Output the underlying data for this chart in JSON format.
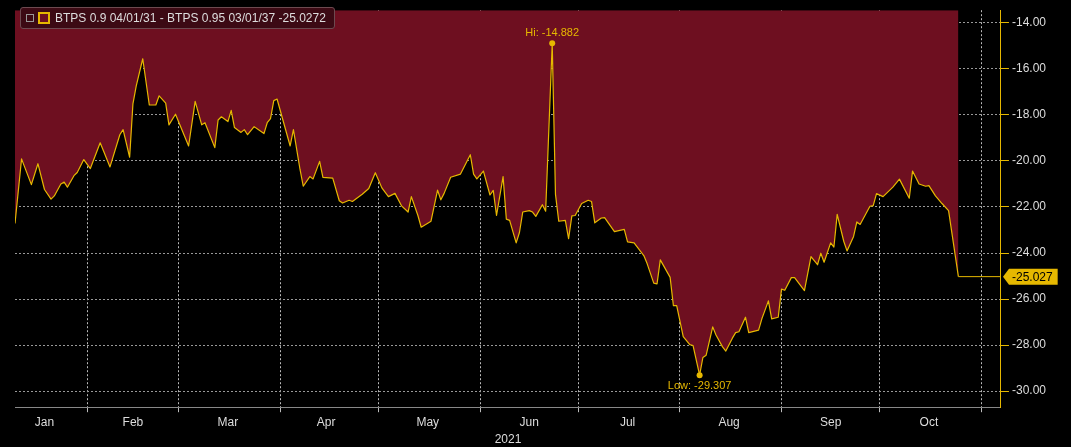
{
  "chart_data": {
    "type": "area",
    "xlabel": "2021",
    "legend": "top left",
    "grid": true,
    "marker": "none",
    "xlim": [
      "2021-01-10",
      "2021-11-07"
    ],
    "xticks": [
      {
        "value": "2021-01-19",
        "label": "Jan"
      },
      {
        "value": "2021-02-01",
        "label": null
      },
      {
        "value": "2021-02-15",
        "label": "Feb"
      },
      {
        "value": "2021-03-01",
        "label": null
      },
      {
        "value": "2021-03-16",
        "label": "Mar"
      },
      {
        "value": "2021-04-01",
        "label": null
      },
      {
        "value": "2021-04-15",
        "label": "Apr"
      },
      {
        "value": "2021-05-01",
        "label": null
      },
      {
        "value": "2021-05-16",
        "label": "May"
      },
      {
        "value": "2021-06-01",
        "label": null
      },
      {
        "value": "2021-06-16",
        "label": "Jun"
      },
      {
        "value": "2021-07-01",
        "label": null
      },
      {
        "value": "2021-07-16",
        "label": "Jul"
      },
      {
        "value": "2021-08-01",
        "label": null
      },
      {
        "value": "2021-08-16",
        "label": "Aug"
      },
      {
        "value": "2021-09-01",
        "label": null
      },
      {
        "value": "2021-09-16",
        "label": "Sep"
      },
      {
        "value": "2021-10-01",
        "label": null
      },
      {
        "value": "2021-10-16",
        "label": "Oct"
      },
      {
        "value": "2021-11-01",
        "label": null
      }
    ],
    "ylim": [
      -30.7,
      -13.45
    ],
    "yticks": [
      {
        "value": -14,
        "label": "-14.00"
      },
      {
        "value": -16,
        "label": "-16.00"
      },
      {
        "value": -18,
        "label": "-18.00"
      },
      {
        "value": -20,
        "label": "-20.00"
      },
      {
        "value": -22,
        "label": "-22.00"
      },
      {
        "value": -24,
        "label": "-24.00"
      },
      {
        "value": -26,
        "label": "-26.00"
      },
      {
        "value": -28,
        "label": "-28.00"
      },
      {
        "value": -30,
        "label": "-30.00"
      }
    ],
    "x": [
      "2021-01-10",
      "2021-01-12",
      "2021-01-15",
      "2021-01-17",
      "2021-01-19",
      "2021-01-21",
      "2021-01-22",
      "2021-01-24",
      "2021-01-25",
      "2021-01-26",
      "2021-01-28",
      "2021-01-29",
      "2021-01-31",
      "2021-02-02",
      "2021-02-05",
      "2021-02-06",
      "2021-02-08",
      "2021-02-11",
      "2021-02-12",
      "2021-02-14",
      "2021-02-15",
      "2021-02-16",
      "2021-02-18",
      "2021-02-20",
      "2021-02-22",
      "2021-02-23",
      "2021-02-25",
      "2021-02-26",
      "2021-02-28",
      "2021-03-04",
      "2021-03-06",
      "2021-03-08",
      "2021-03-09",
      "2021-03-12",
      "2021-03-13",
      "2021-03-14",
      "2021-03-16",
      "2021-03-17",
      "2021-03-18",
      "2021-03-20",
      "2021-03-21",
      "2021-03-22",
      "2021-03-24",
      "2021-03-27",
      "2021-03-28",
      "2021-03-29",
      "2021-03-30",
      "2021-03-31",
      "2021-04-04",
      "2021-04-05",
      "2021-04-07",
      "2021-04-08",
      "2021-04-10",
      "2021-04-11",
      "2021-04-13",
      "2021-04-14",
      "2021-04-17",
      "2021-04-19",
      "2021-04-20",
      "2021-04-22",
      "2021-04-23",
      "2021-04-26",
      "2021-04-28",
      "2021-04-30",
      "2021-05-02",
      "2021-05-04",
      "2021-05-06",
      "2021-05-08",
      "2021-05-10",
      "2021-05-11",
      "2021-05-13",
      "2021-05-14",
      "2021-05-17",
      "2021-05-19",
      "2021-05-20",
      "2021-05-21",
      "2021-05-23",
      "2021-05-26",
      "2021-05-29",
      "2021-05-30",
      "2021-05-31",
      "2021-06-02",
      "2021-06-04",
      "2021-06-05",
      "2021-06-06",
      "2021-06-08",
      "2021-06-09",
      "2021-06-10",
      "2021-06-12",
      "2021-06-13",
      "2021-06-14",
      "2021-06-16",
      "2021-06-17",
      "2021-06-18",
      "2021-06-20",
      "2021-06-21",
      "2021-06-23",
      "2021-06-24",
      "2021-06-25",
      "2021-06-27",
      "2021-06-28",
      "2021-06-29",
      "2021-06-30",
      "2021-07-02",
      "2021-07-04",
      "2021-07-05",
      "2021-07-06",
      "2021-07-08",
      "2021-07-09",
      "2021-07-12",
      "2021-07-15",
      "2021-07-16",
      "2021-07-18",
      "2021-07-21",
      "2021-07-22",
      "2021-07-24",
      "2021-07-25",
      "2021-07-26",
      "2021-07-29",
      "2021-07-30",
      "2021-07-31",
      "2021-08-02",
      "2021-08-04",
      "2021-08-05",
      "2021-08-07",
      "2021-08-08",
      "2021-08-09",
      "2021-08-11",
      "2021-08-12",
      "2021-08-14",
      "2021-08-15",
      "2021-08-17",
      "2021-08-18",
      "2021-08-19",
      "2021-08-21",
      "2021-08-22",
      "2021-08-25",
      "2021-08-26",
      "2021-08-28",
      "2021-08-29",
      "2021-08-31",
      "2021-09-01",
      "2021-09-02",
      "2021-09-04",
      "2021-09-05",
      "2021-09-08",
      "2021-09-10",
      "2021-09-12",
      "2021-09-13",
      "2021-09-14",
      "2021-09-16",
      "2021-09-17",
      "2021-09-18",
      "2021-09-20",
      "2021-09-21",
      "2021-09-23",
      "2021-09-24",
      "2021-09-25",
      "2021-09-28",
      "2021-09-29",
      "2021-09-30",
      "2021-10-02",
      "2021-10-05",
      "2021-10-07",
      "2021-10-10",
      "2021-10-11",
      "2021-10-13",
      "2021-10-15",
      "2021-10-16",
      "2021-10-18",
      "2021-10-20",
      "2021-10-22",
      "2021-10-25"
    ],
    "series": [
      {
        "name": "BTPS 0.9 04/01/31 - BTPS 0.95 03/01/37 -25.0272",
        "color": "#e6b800",
        "values": [
          -22.72,
          -19.91,
          -21.03,
          -20.12,
          -21.24,
          -21.66,
          -21.52,
          -21.0,
          -20.92,
          -21.14,
          -20.64,
          -20.5,
          -19.94,
          -20.33,
          -19.21,
          -19.56,
          -20.26,
          -18.86,
          -18.64,
          -19.84,
          -17.52,
          -16.75,
          -15.56,
          -17.57,
          -17.57,
          -17.17,
          -17.49,
          -18.43,
          -17.97,
          -19.35,
          -17.41,
          -18.43,
          -18.34,
          -19.42,
          -18.22,
          -18.08,
          -18.29,
          -17.8,
          -18.55,
          -18.76,
          -18.64,
          -18.86,
          -18.51,
          -18.81,
          -18.34,
          -18.16,
          -17.38,
          -17.31,
          -19.35,
          -18.64,
          -20.36,
          -21.1,
          -20.68,
          -20.78,
          -20.02,
          -20.71,
          -20.75,
          -21.73,
          -21.83,
          -21.71,
          -21.76,
          -21.45,
          -21.2,
          -20.51,
          -21.17,
          -21.55,
          -21.41,
          -21.95,
          -22.22,
          -21.55,
          -22.37,
          -22.88,
          -22.62,
          -21.27,
          -21.69,
          -21.41,
          -20.71,
          -20.57,
          -19.73,
          -20.57,
          -20.78,
          -20.44,
          -21.48,
          -21.28,
          -22.37,
          -20.68,
          -22.53,
          -22.58,
          -23.56,
          -23.11,
          -22.22,
          -22.16,
          -22.22,
          -22.41,
          -21.9,
          -22.18,
          -14.882,
          -21.45,
          -22.62,
          -22.58,
          -23.38,
          -22.39,
          -22.37,
          -21.85,
          -21.71,
          -21.76,
          -22.69,
          -22.48,
          -22.46,
          -23.07,
          -22.97,
          -23.52,
          -23.56,
          -24.12,
          -24.47,
          -25.31,
          -25.34,
          -24.3,
          -25.06,
          -26.29,
          -26.29,
          -27.63,
          -27.98,
          -28.02,
          -29.307,
          -28.54,
          -28.44,
          -27.21,
          -27.56,
          -28.08,
          -28.26,
          -27.7,
          -27.46,
          -27.42,
          -26.79,
          -27.46,
          -27.35,
          -26.86,
          -26.08,
          -26.86,
          -26.79,
          -25.57,
          -25.62,
          -25.07,
          -25.07,
          -25.63,
          -24.16,
          -24.51,
          -24.01,
          -24.4,
          -23.56,
          -23.74,
          -22.32,
          -23.49,
          -23.91,
          -23.28,
          -22.65,
          -22.76,
          -21.97,
          -21.94,
          -21.42,
          -21.55,
          -21.14,
          -20.79,
          -21.62,
          -20.44,
          -21.0,
          -21.1,
          -21.07,
          -21.52,
          -21.85,
          -22.16,
          -25.0272
        ]
      }
    ],
    "ref_lines": [
      {
        "axis": "y",
        "value": -25.027,
        "label": "-25.027",
        "color": "#e6b800"
      }
    ],
    "annotations": [
      {
        "text": "Hi: -14.882",
        "x": "2021-06-23",
        "y": -14.882
      },
      {
        "text": "Low: -29.307",
        "x": "2021-08-07",
        "y": -29.307
      }
    ]
  }
}
